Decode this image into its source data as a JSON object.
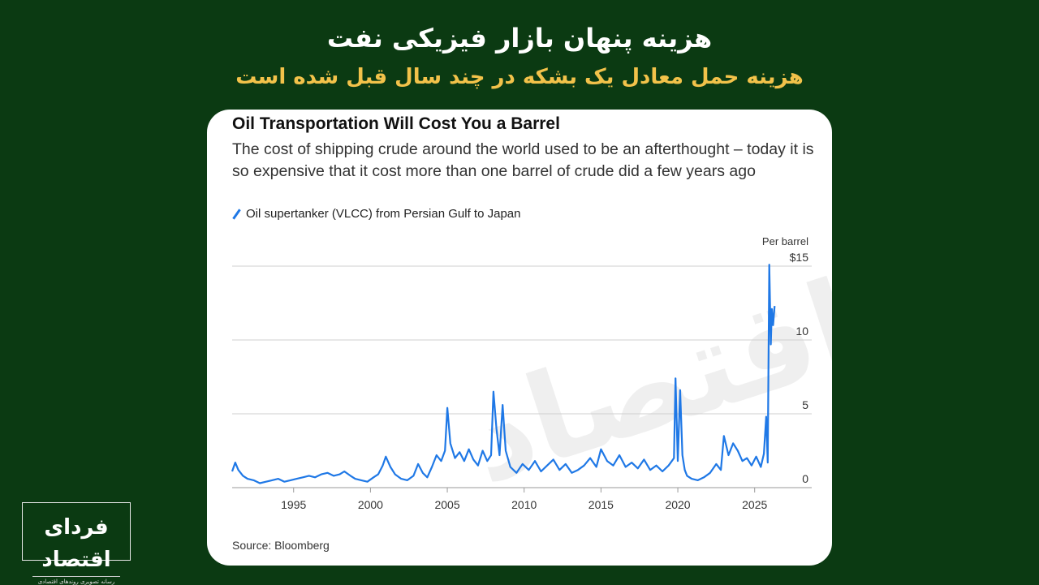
{
  "header": {
    "title": "هزینه پنهان بازار فیزیکی نفت",
    "subtitle": "هزینه حمل معادل یک بشکه در چند سال قبل شده است"
  },
  "logo": {
    "name": "فردای اقتصاد",
    "tagline": "رسانه تصویری روندهای اقتصادی"
  },
  "watermark": "فردای اقتصاد",
  "colors": {
    "background": "#0b3a12",
    "accent": "#f2c24a",
    "series": "#1f78e6"
  },
  "chart_data": {
    "type": "line",
    "title": "Oil Transportation Will Cost You a Barrel",
    "subtitle": "The cost of shipping crude around the world used to be an afterthought – today it is so expensive that it cost more than one barrel of crude did a few years ago",
    "legend_position": "top-left",
    "grid": true,
    "y_unit_label": "Per barrel",
    "ylim": [
      0,
      15
    ],
    "xlim": [
      1991,
      2026.6
    ],
    "y_ticks": [
      {
        "value": 15,
        "label": "$15"
      },
      {
        "value": 10,
        "label": "10"
      },
      {
        "value": 5,
        "label": "5"
      },
      {
        "value": 0,
        "label": "0"
      }
    ],
    "x_ticks": [
      {
        "value": 1995,
        "label": "1995"
      },
      {
        "value": 2000,
        "label": "2000"
      },
      {
        "value": 2005,
        "label": "2005"
      },
      {
        "value": 2010,
        "label": "2010"
      },
      {
        "value": 2015,
        "label": "2015"
      },
      {
        "value": 2020,
        "label": "2020"
      },
      {
        "value": 2025,
        "label": "2025"
      }
    ],
    "series": [
      {
        "name": "Oil supertanker (VLCC) from Persian Gulf to Japan",
        "color": "#1f78e6",
        "x": [
          1991.0,
          1991.2,
          1991.4,
          1991.7,
          1992.0,
          1992.4,
          1992.8,
          1993.2,
          1993.6,
          1994.0,
          1994.4,
          1994.8,
          1995.2,
          1995.6,
          1996.0,
          1996.4,
          1996.8,
          1997.2,
          1997.6,
          1998.0,
          1998.3,
          1998.7,
          1999.0,
          1999.4,
          1999.8,
          2000.2,
          2000.5,
          2000.8,
          2001.0,
          2001.3,
          2001.6,
          2002.0,
          2002.4,
          2002.8,
          2003.1,
          2003.4,
          2003.7,
          2004.0,
          2004.3,
          2004.6,
          2004.85,
          2005.0,
          2005.2,
          2005.5,
          2005.8,
          2006.1,
          2006.4,
          2006.7,
          2007.0,
          2007.3,
          2007.6,
          2007.85,
          2008.0,
          2008.2,
          2008.4,
          2008.6,
          2008.8,
          2009.1,
          2009.5,
          2009.9,
          2010.3,
          2010.7,
          2011.1,
          2011.5,
          2011.9,
          2012.3,
          2012.7,
          2013.1,
          2013.5,
          2013.9,
          2014.3,
          2014.7,
          2015.0,
          2015.4,
          2015.8,
          2016.2,
          2016.6,
          2017.0,
          2017.4,
          2017.8,
          2018.2,
          2018.6,
          2019.0,
          2019.4,
          2019.75,
          2019.85,
          2020.0,
          2020.15,
          2020.3,
          2020.45,
          2020.6,
          2020.9,
          2021.3,
          2021.7,
          2022.1,
          2022.5,
          2022.8,
          2023.0,
          2023.3,
          2023.6,
          2023.9,
          2024.2,
          2024.5,
          2024.8,
          2025.1,
          2025.4,
          2025.6,
          2025.75,
          2025.85,
          2025.95,
          2026.05,
          2026.12,
          2026.2,
          2026.3
        ],
        "values": [
          1.1,
          1.7,
          1.2,
          0.8,
          0.6,
          0.5,
          0.3,
          0.4,
          0.5,
          0.6,
          0.4,
          0.5,
          0.6,
          0.7,
          0.8,
          0.7,
          0.9,
          1.0,
          0.8,
          0.9,
          1.1,
          0.8,
          0.6,
          0.5,
          0.4,
          0.7,
          0.9,
          1.5,
          2.1,
          1.4,
          0.9,
          0.6,
          0.5,
          0.8,
          1.6,
          1.0,
          0.7,
          1.4,
          2.2,
          1.8,
          2.5,
          5.4,
          3.0,
          2.0,
          2.4,
          1.8,
          2.6,
          1.9,
          1.5,
          2.5,
          1.8,
          2.2,
          6.5,
          4.0,
          2.2,
          5.6,
          2.5,
          1.4,
          1.0,
          1.6,
          1.2,
          1.8,
          1.1,
          1.5,
          1.9,
          1.2,
          1.6,
          1.0,
          1.2,
          1.5,
          2.0,
          1.4,
          2.6,
          1.8,
          1.5,
          2.2,
          1.4,
          1.7,
          1.3,
          1.9,
          1.2,
          1.5,
          1.1,
          1.5,
          2.0,
          7.4,
          1.8,
          6.6,
          2.2,
          1.2,
          0.8,
          0.6,
          0.5,
          0.7,
          1.0,
          1.6,
          1.2,
          3.5,
          2.2,
          3.0,
          2.5,
          1.8,
          2.0,
          1.5,
          2.1,
          1.4,
          2.3,
          4.8,
          1.7,
          15.1,
          9.7,
          12.1,
          11.0,
          12.3
        ]
      }
    ]
  },
  "source": "Source: Bloomberg"
}
